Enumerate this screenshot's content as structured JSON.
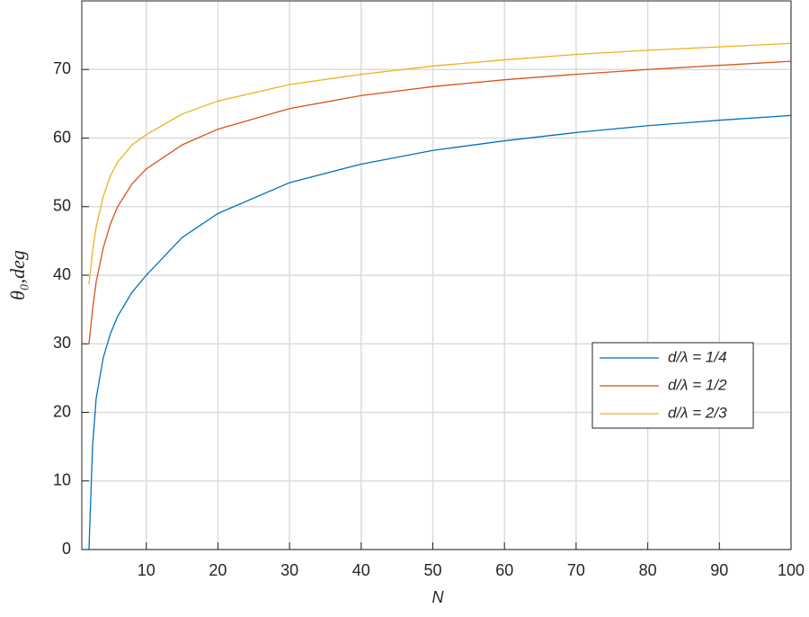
{
  "chart_data": {
    "type": "line",
    "x_label": "N",
    "y_label": "θ₀,deg",
    "x": [
      2,
      2.5,
      3,
      4,
      5,
      6,
      8,
      10,
      15,
      20,
      30,
      40,
      50,
      60,
      70,
      80,
      90,
      100
    ],
    "series": [
      {
        "name": "d/λ = 1/4",
        "color": "#0072BD",
        "values": [
          0,
          15,
          22,
          28,
          31.5,
          34,
          37.5,
          40,
          45.5,
          49,
          53.5,
          56.2,
          58.2,
          59.6,
          60.8,
          61.8,
          62.6,
          63.3
        ]
      },
      {
        "name": "d/λ = 1/2",
        "color": "#D95319",
        "values": [
          30,
          35,
          39,
          44,
          47.5,
          50,
          53.3,
          55.5,
          59,
          61.3,
          64.3,
          66.2,
          67.5,
          68.5,
          69.3,
          70,
          70.6,
          71.2
        ]
      },
      {
        "name": "d/λ = 2/3",
        "color": "#EDB120",
        "values": [
          38.7,
          43.5,
          47,
          51.5,
          54.5,
          56.5,
          59,
          60.5,
          63.5,
          65.4,
          67.8,
          69.3,
          70.5,
          71.4,
          72.2,
          72.8,
          73.3,
          73.8
        ]
      }
    ],
    "xlim": [
      1,
      100
    ],
    "xticks": [
      10,
      20,
      30,
      40,
      50,
      60,
      70,
      80,
      90,
      100
    ],
    "ylim": [
      0,
      80
    ],
    "yticks": [
      0,
      10,
      20,
      30,
      40,
      50,
      60,
      70
    ],
    "grid": true,
    "legend": "right"
  }
}
